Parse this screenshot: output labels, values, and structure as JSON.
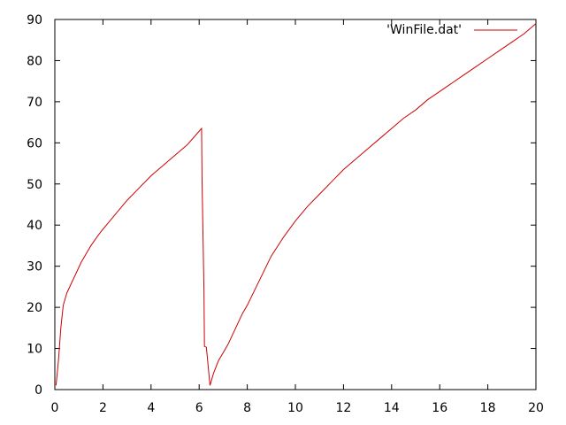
{
  "chart_data": {
    "type": "line",
    "title": "",
    "xlabel": "",
    "ylabel": "",
    "xlim": [
      0,
      20
    ],
    "ylim": [
      0,
      90
    ],
    "x_ticks": [
      0,
      2,
      4,
      6,
      8,
      10,
      12,
      14,
      16,
      18,
      20
    ],
    "y_ticks": [
      0,
      10,
      20,
      30,
      40,
      50,
      60,
      70,
      80,
      90
    ],
    "grid": false,
    "legend_position": "top-right",
    "series": [
      {
        "name": "'WinFile.dat'",
        "color": "#cc0000",
        "points": [
          [
            0.05,
            1
          ],
          [
            0.15,
            7
          ],
          [
            0.25,
            15
          ],
          [
            0.35,
            20.5
          ],
          [
            0.5,
            23.5
          ],
          [
            0.7,
            26
          ],
          [
            0.9,
            28.5
          ],
          [
            1.1,
            31
          ],
          [
            1.3,
            33
          ],
          [
            1.5,
            35
          ],
          [
            1.8,
            37.5
          ],
          [
            2.0,
            39
          ],
          [
            2.5,
            42.5
          ],
          [
            3.0,
            46
          ],
          [
            3.5,
            49
          ],
          [
            4.0,
            52
          ],
          [
            4.5,
            54.5
          ],
          [
            5.0,
            57
          ],
          [
            5.5,
            59.5
          ],
          [
            5.8,
            61.5
          ],
          [
            6.1,
            63.5
          ],
          [
            6.12,
            51
          ],
          [
            6.2,
            24
          ],
          [
            6.22,
            10.5
          ],
          [
            6.3,
            10.3
          ],
          [
            6.45,
            1
          ],
          [
            6.6,
            4
          ],
          [
            6.8,
            7
          ],
          [
            7.0,
            9
          ],
          [
            7.2,
            11
          ],
          [
            7.4,
            13.5
          ],
          [
            7.6,
            16
          ],
          [
            7.8,
            18.5
          ],
          [
            8.0,
            20.5
          ],
          [
            8.5,
            26.5
          ],
          [
            9.0,
            32.5
          ],
          [
            9.5,
            37
          ],
          [
            10.0,
            41
          ],
          [
            10.5,
            44.5
          ],
          [
            11.0,
            47.5
          ],
          [
            11.5,
            50.5
          ],
          [
            12.0,
            53.5
          ],
          [
            12.5,
            56
          ],
          [
            13.0,
            58.5
          ],
          [
            13.5,
            61
          ],
          [
            14.0,
            63.5
          ],
          [
            14.5,
            66
          ],
          [
            15.0,
            68
          ],
          [
            15.5,
            70.5
          ],
          [
            16.0,
            72.5
          ],
          [
            16.5,
            74.5
          ],
          [
            17.0,
            76.5
          ],
          [
            17.5,
            78.5
          ],
          [
            18.0,
            80.5
          ],
          [
            18.5,
            82.5
          ],
          [
            19.0,
            84.5
          ],
          [
            19.5,
            86.5
          ],
          [
            20.0,
            89
          ]
        ]
      }
    ]
  }
}
